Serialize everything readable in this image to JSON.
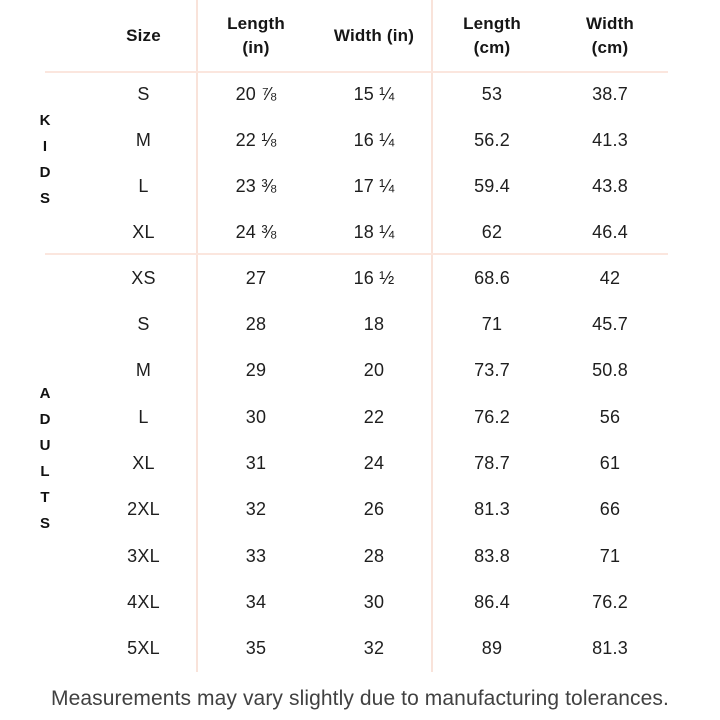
{
  "colors": {
    "background": "#ffffff",
    "divider_line": "#f9e3da",
    "text": "#1e1e1e",
    "footnote_text": "#414141"
  },
  "chart_data": {
    "type": "table",
    "columns": [
      "Size",
      "Length (in)",
      "Width (in)",
      "Length (cm)",
      "Width (cm)"
    ],
    "groups": [
      {
        "label": "KIDS",
        "rows": [
          [
            "S",
            "20 ⅞",
            "15 ¼",
            "53",
            "38.7"
          ],
          [
            "M",
            "22 ⅛",
            "16 ¼",
            "56.2",
            "41.3"
          ],
          [
            "L",
            "23 ⅜",
            "17 ¼",
            "59.4",
            "43.8"
          ],
          [
            "XL",
            "24 ⅜",
            "18 ¼",
            "62",
            "46.4"
          ]
        ]
      },
      {
        "label": "ADULTS",
        "rows": [
          [
            "XS",
            "27",
            "16 ½",
            "68.6",
            "42"
          ],
          [
            "S",
            "28",
            "18",
            "71",
            "45.7"
          ],
          [
            "M",
            "29",
            "20",
            "73.7",
            "50.8"
          ],
          [
            "L",
            "30",
            "22",
            "76.2",
            "56"
          ],
          [
            "XL",
            "31",
            "24",
            "78.7",
            "61"
          ],
          [
            "2XL",
            "32",
            "26",
            "81.3",
            "66"
          ],
          [
            "3XL",
            "33",
            "28",
            "83.8",
            "71"
          ],
          [
            "4XL",
            "34",
            "30",
            "86.4",
            "76.2"
          ],
          [
            "5XL",
            "35",
            "32",
            "89",
            "81.3"
          ]
        ]
      }
    ],
    "footnote": "Measurements may vary slightly due to manufacturing tolerances."
  }
}
